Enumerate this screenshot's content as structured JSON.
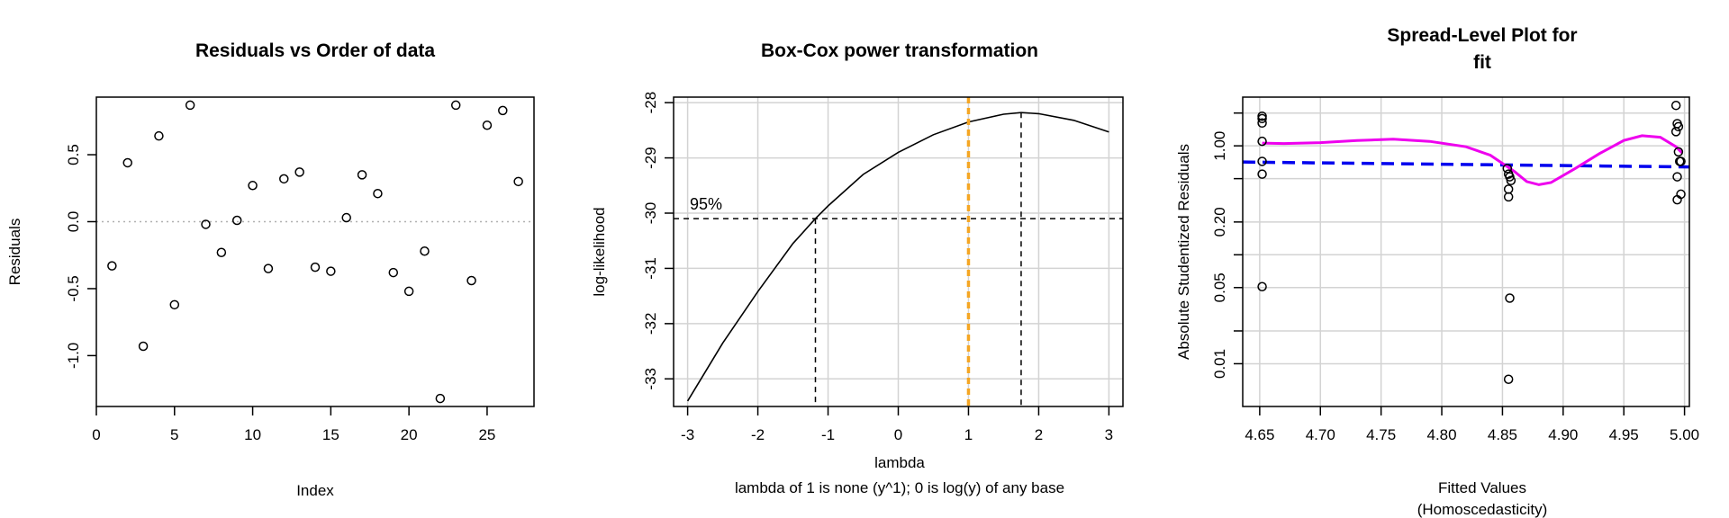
{
  "chart_data": [
    {
      "type": "scatter",
      "title": "Residuals vs Order of data",
      "xlabel": "Index",
      "ylabel": "Residuals",
      "xlim": [
        0,
        28
      ],
      "ylim": [
        -1.38,
        0.93
      ],
      "xticks": [
        0,
        5,
        10,
        15,
        20,
        25
      ],
      "yticks": [
        -1.0,
        -0.5,
        0.0,
        0.5
      ],
      "ytick_labels": [
        "-1.0",
        "-0.5",
        "0.0",
        "0.5"
      ],
      "grid": false,
      "reference_line": 0,
      "x": [
        1,
        2,
        3,
        4,
        5,
        6,
        7,
        8,
        9,
        10,
        11,
        12,
        13,
        14,
        15,
        16,
        17,
        18,
        19,
        20,
        21,
        22,
        23,
        24,
        25,
        26,
        27
      ],
      "y": [
        -0.33,
        0.44,
        -0.93,
        0.64,
        -0.62,
        0.87,
        -0.02,
        -0.23,
        0.01,
        0.27,
        -0.35,
        0.32,
        0.37,
        -0.34,
        -0.37,
        0.03,
        0.35,
        0.21,
        -0.38,
        -0.52,
        -0.22,
        -1.32,
        0.87,
        -0.44,
        0.72,
        0.83,
        0.3
      ]
    },
    {
      "type": "line",
      "title": "Box-Cox power transformation",
      "xlabel": "lambda",
      "subtitle": "lambda of 1 is none (y^1); 0 is log(y) of any base",
      "ylabel": "log-likelihood",
      "xlim": [
        -3.2,
        3.2
      ],
      "ylim": [
        -33.5,
        -27.9
      ],
      "xticks": [
        -3,
        -2,
        -1,
        0,
        1,
        2,
        3
      ],
      "yticks": [
        -33,
        -32,
        -31,
        -30,
        -29,
        -28
      ],
      "grid": true,
      "annotation": "95%",
      "ci_level": -30.1,
      "ci_lambda": [
        -1.18,
        1.75
      ],
      "lambda_hat": 1.75,
      "reference_lambda": 1,
      "x": [
        -3.0,
        -2.5,
        -2.0,
        -1.5,
        -1.18,
        -1.0,
        -0.5,
        0.0,
        0.5,
        1.0,
        1.5,
        1.75,
        2.0,
        2.5,
        3.0
      ],
      "y": [
        -33.4,
        -32.35,
        -31.42,
        -30.55,
        -30.1,
        -29.87,
        -29.3,
        -28.9,
        -28.58,
        -28.35,
        -28.21,
        -28.18,
        -28.2,
        -28.32,
        -28.53
      ]
    },
    {
      "type": "scatter",
      "title": "Spread-Level Plot for",
      "title_line2": "fit",
      "xlabel": "Fitted Values",
      "xlabel_line2": "(Homoscedasticity)",
      "ylabel": "Absolute Studentized Residuals",
      "log_y": true,
      "xlim": [
        4.636,
        5.004
      ],
      "ylim": [
        0.00405,
        2.8
      ],
      "xticks": [
        4.65,
        4.7,
        4.75,
        4.8,
        4.85,
        4.9,
        4.95,
        5.0
      ],
      "xtick_labels": [
        "4.65",
        "4.70",
        "4.75",
        "4.80",
        "4.85",
        "4.90",
        "4.95",
        "5.00"
      ],
      "yticks": [
        0.01,
        0.05,
        0.2,
        1.0
      ],
      "ytick_labels": [
        "0.01",
        "0.05",
        "0.20",
        "1.00"
      ],
      "grid": true,
      "points": [
        [
          4.652,
          1.87
        ],
        [
          4.652,
          1.78
        ],
        [
          4.652,
          1.62
        ],
        [
          4.652,
          1.1
        ],
        [
          4.652,
          0.72
        ],
        [
          4.652,
          0.55
        ],
        [
          4.652,
          0.051
        ],
        [
          4.854,
          0.62
        ],
        [
          4.855,
          0.55
        ],
        [
          4.856,
          0.52
        ],
        [
          4.857,
          0.48
        ],
        [
          4.855,
          0.4
        ],
        [
          4.855,
          0.34
        ],
        [
          4.856,
          0.04
        ],
        [
          4.855,
          0.0072
        ],
        [
          4.993,
          2.35
        ],
        [
          4.994,
          1.6
        ],
        [
          4.995,
          1.5
        ],
        [
          4.993,
          1.35
        ],
        [
          4.995,
          0.88
        ],
        [
          4.996,
          0.72
        ],
        [
          4.994,
          0.52
        ],
        [
          4.997,
          0.72
        ],
        [
          4.997,
          0.36
        ],
        [
          4.994,
          0.32
        ]
      ],
      "fit_line": {
        "color": "#0000ee",
        "style": "dashed",
        "x": [
          4.636,
          5.004
        ],
        "y": [
          0.71,
          0.64
        ]
      },
      "smooth_line": {
        "color": "#ee00ee",
        "x": [
          4.652,
          4.67,
          4.7,
          4.73,
          4.76,
          4.79,
          4.82,
          4.84,
          4.86,
          4.87,
          4.88,
          4.89,
          4.91,
          4.93,
          4.95,
          4.965,
          4.98,
          4.993,
          4.998
        ],
        "y": [
          1.06,
          1.05,
          1.07,
          1.12,
          1.15,
          1.1,
          0.98,
          0.82,
          0.58,
          0.47,
          0.44,
          0.46,
          0.62,
          0.85,
          1.12,
          1.24,
          1.2,
          0.98,
          0.86
        ]
      }
    }
  ]
}
